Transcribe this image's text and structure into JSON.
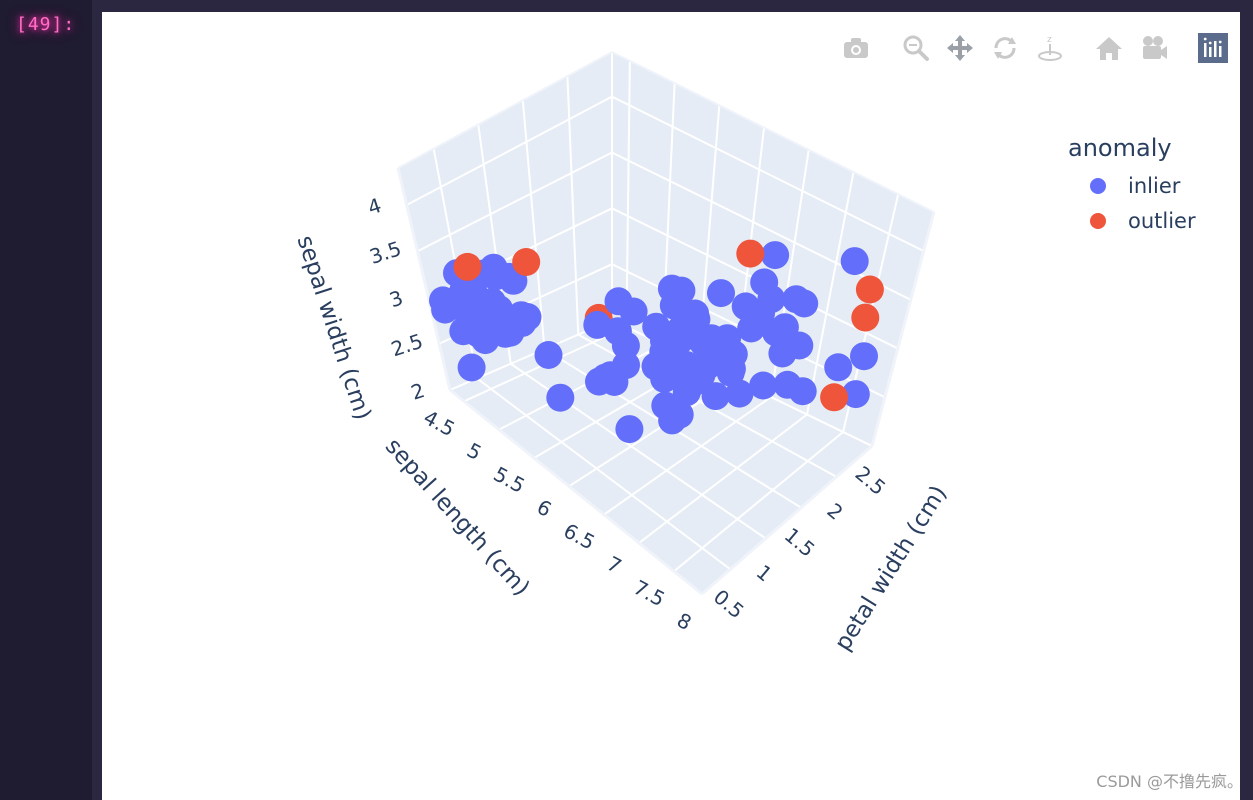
{
  "notebook": {
    "prompt": "[49]:"
  },
  "modebar": {
    "icons": [
      "camera-icon",
      "zoom-icon",
      "pan-icon",
      "orbit-rotate-icon",
      "turntable-rotate-icon",
      "home-icon",
      "camera-view-icon",
      "plotly-logo-icon"
    ]
  },
  "legend": {
    "title": "anomaly",
    "items": [
      {
        "label": "inlier",
        "color": "#636efa"
      },
      {
        "label": "outlier",
        "color": "#ef553b"
      }
    ]
  },
  "chart_data": {
    "type": "scatter3d",
    "axes": {
      "x": {
        "title": "sepal length (cm)",
        "ticks": [
          "4.5",
          "5",
          "5.5",
          "6",
          "6.5",
          "7",
          "7.5",
          "8"
        ],
        "range": [
          4.3,
          7.9
        ]
      },
      "y": {
        "title": "petal width (cm)",
        "ticks": [
          "0.5",
          "1",
          "1.5",
          "2",
          "2.5"
        ],
        "range": [
          0.1,
          2.5
        ]
      },
      "z": {
        "title": "sepal width (cm)",
        "ticks": [
          "2",
          "2.5",
          "3",
          "3.5",
          "4"
        ],
        "range": [
          2.0,
          4.4
        ]
      }
    },
    "background": "#e5ecf6",
    "grid": true,
    "legend_position": "top-right",
    "series": [
      {
        "name": "inlier",
        "color": "#636efa",
        "points": [
          [
            5.1,
            3.5,
            0.2
          ],
          [
            4.9,
            3.0,
            0.2
          ],
          [
            4.7,
            3.2,
            0.2
          ],
          [
            4.6,
            3.1,
            0.2
          ],
          [
            5.0,
            3.6,
            0.2
          ],
          [
            5.4,
            3.9,
            0.4
          ],
          [
            4.6,
            3.4,
            0.3
          ],
          [
            5.0,
            3.4,
            0.2
          ],
          [
            4.4,
            2.9,
            0.2
          ],
          [
            4.9,
            3.1,
            0.1
          ],
          [
            5.4,
            3.7,
            0.2
          ],
          [
            4.8,
            3.4,
            0.2
          ],
          [
            4.8,
            3.0,
            0.1
          ],
          [
            5.8,
            4.0,
            0.2
          ],
          [
            5.7,
            3.8,
            0.3
          ],
          [
            5.1,
            3.8,
            0.3
          ],
          [
            5.4,
            3.4,
            0.2
          ],
          [
            5.1,
            3.7,
            0.4
          ],
          [
            5.0,
            3.0,
            0.2
          ],
          [
            5.2,
            3.5,
            0.2
          ],
          [
            5.2,
            3.4,
            0.2
          ],
          [
            4.7,
            3.2,
            0.2
          ],
          [
            4.8,
            3.1,
            0.2
          ],
          [
            5.4,
            3.4,
            0.4
          ],
          [
            5.5,
            4.2,
            0.2
          ],
          [
            5.5,
            3.5,
            0.2
          ],
          [
            4.4,
            3.0,
            0.2
          ],
          [
            5.0,
            3.5,
            0.6
          ],
          [
            5.1,
            3.8,
            0.4
          ],
          [
            4.8,
            3.0,
            0.3
          ],
          [
            5.3,
            3.7,
            0.2
          ],
          [
            5.0,
            3.3,
            0.2
          ],
          [
            5.0,
            3.2,
            0.2
          ],
          [
            4.5,
            2.3,
            0.3
          ],
          [
            7.0,
            3.2,
            1.4
          ],
          [
            6.4,
            3.2,
            1.5
          ],
          [
            6.9,
            3.1,
            1.5
          ],
          [
            5.5,
            2.3,
            1.3
          ],
          [
            6.5,
            2.8,
            1.5
          ],
          [
            5.7,
            2.8,
            1.3
          ],
          [
            6.3,
            3.3,
            1.6
          ],
          [
            4.9,
            2.4,
            1.0
          ],
          [
            6.6,
            2.9,
            1.3
          ],
          [
            5.2,
            2.7,
            1.4
          ],
          [
            5.0,
            2.0,
            1.0
          ],
          [
            5.9,
            3.0,
            1.5
          ],
          [
            6.0,
            2.2,
            1.0
          ],
          [
            6.1,
            2.9,
            1.4
          ],
          [
            5.6,
            2.9,
            1.3
          ],
          [
            6.7,
            3.1,
            1.4
          ],
          [
            5.6,
            3.0,
            1.5
          ],
          [
            5.8,
            2.7,
            1.0
          ],
          [
            6.2,
            2.2,
            1.5
          ],
          [
            5.6,
            2.5,
            1.1
          ],
          [
            5.9,
            3.2,
            1.8
          ],
          [
            6.1,
            2.8,
            1.3
          ],
          [
            6.3,
            2.5,
            1.5
          ],
          [
            6.4,
            2.9,
            1.3
          ],
          [
            6.6,
            3.0,
            1.4
          ],
          [
            6.8,
            2.8,
            1.4
          ],
          [
            6.7,
            3.0,
            1.7
          ],
          [
            6.0,
            2.9,
            1.5
          ],
          [
            5.7,
            2.6,
            1.0
          ],
          [
            5.5,
            2.4,
            1.1
          ],
          [
            5.8,
            2.7,
            1.2
          ],
          [
            6.0,
            2.7,
            1.6
          ],
          [
            5.4,
            3.0,
            1.5
          ],
          [
            6.0,
            3.4,
            1.6
          ],
          [
            6.3,
            2.3,
            1.3
          ],
          [
            6.3,
            3.3,
            2.5
          ],
          [
            5.8,
            2.7,
            1.9
          ],
          [
            7.1,
            3.0,
            2.1
          ],
          [
            6.3,
            2.9,
            1.8
          ],
          [
            6.5,
            3.0,
            2.2
          ],
          [
            7.6,
            3.0,
            2.1
          ],
          [
            7.3,
            2.9,
            1.8
          ],
          [
            6.7,
            2.5,
            1.8
          ],
          [
            7.2,
            3.6,
            2.5
          ],
          [
            6.5,
            3.2,
            2.0
          ],
          [
            6.4,
            2.7,
            1.9
          ],
          [
            6.8,
            3.0,
            2.1
          ],
          [
            5.7,
            2.5,
            2.0
          ],
          [
            5.8,
            2.8,
            2.4
          ],
          [
            6.4,
            3.2,
            2.3
          ],
          [
            6.5,
            3.0,
            1.8
          ],
          [
            7.7,
            2.6,
            2.3
          ],
          [
            6.0,
            2.2,
            1.5
          ],
          [
            6.9,
            3.2,
            2.3
          ],
          [
            5.6,
            2.8,
            2.0
          ],
          [
            6.3,
            2.7,
            1.8
          ],
          [
            6.7,
            3.3,
            2.1
          ],
          [
            7.2,
            3.2,
            1.8
          ],
          [
            6.2,
            2.8,
            1.8
          ],
          [
            6.1,
            3.0,
            1.8
          ],
          [
            7.2,
            3.0,
            1.6
          ],
          [
            7.4,
            2.8,
            1.9
          ],
          [
            6.4,
            2.8,
            2.2
          ],
          [
            6.3,
            2.8,
            1.5
          ],
          [
            6.1,
            2.6,
            1.4
          ],
          [
            7.7,
            3.0,
            2.3
          ],
          [
            6.0,
            3.0,
            1.8
          ],
          [
            6.9,
            3.1,
            2.1
          ],
          [
            5.8,
            2.7,
            1.9
          ],
          [
            6.8,
            3.2,
            2.3
          ]
        ]
      },
      {
        "name": "outlier",
        "color": "#ef553b",
        "points": [
          [
            5.7,
            4.4,
            0.4
          ],
          [
            5.2,
            4.1,
            0.1
          ],
          [
            7.9,
            3.8,
            2.0
          ],
          [
            7.7,
            2.8,
            2.0
          ],
          [
            6.2,
            3.4,
            2.3
          ],
          [
            4.9,
            2.5,
            1.7
          ],
          [
            7.7,
            3.8,
            2.2
          ]
        ]
      }
    ]
  },
  "watermark": "CSDN @不撸先疯。"
}
